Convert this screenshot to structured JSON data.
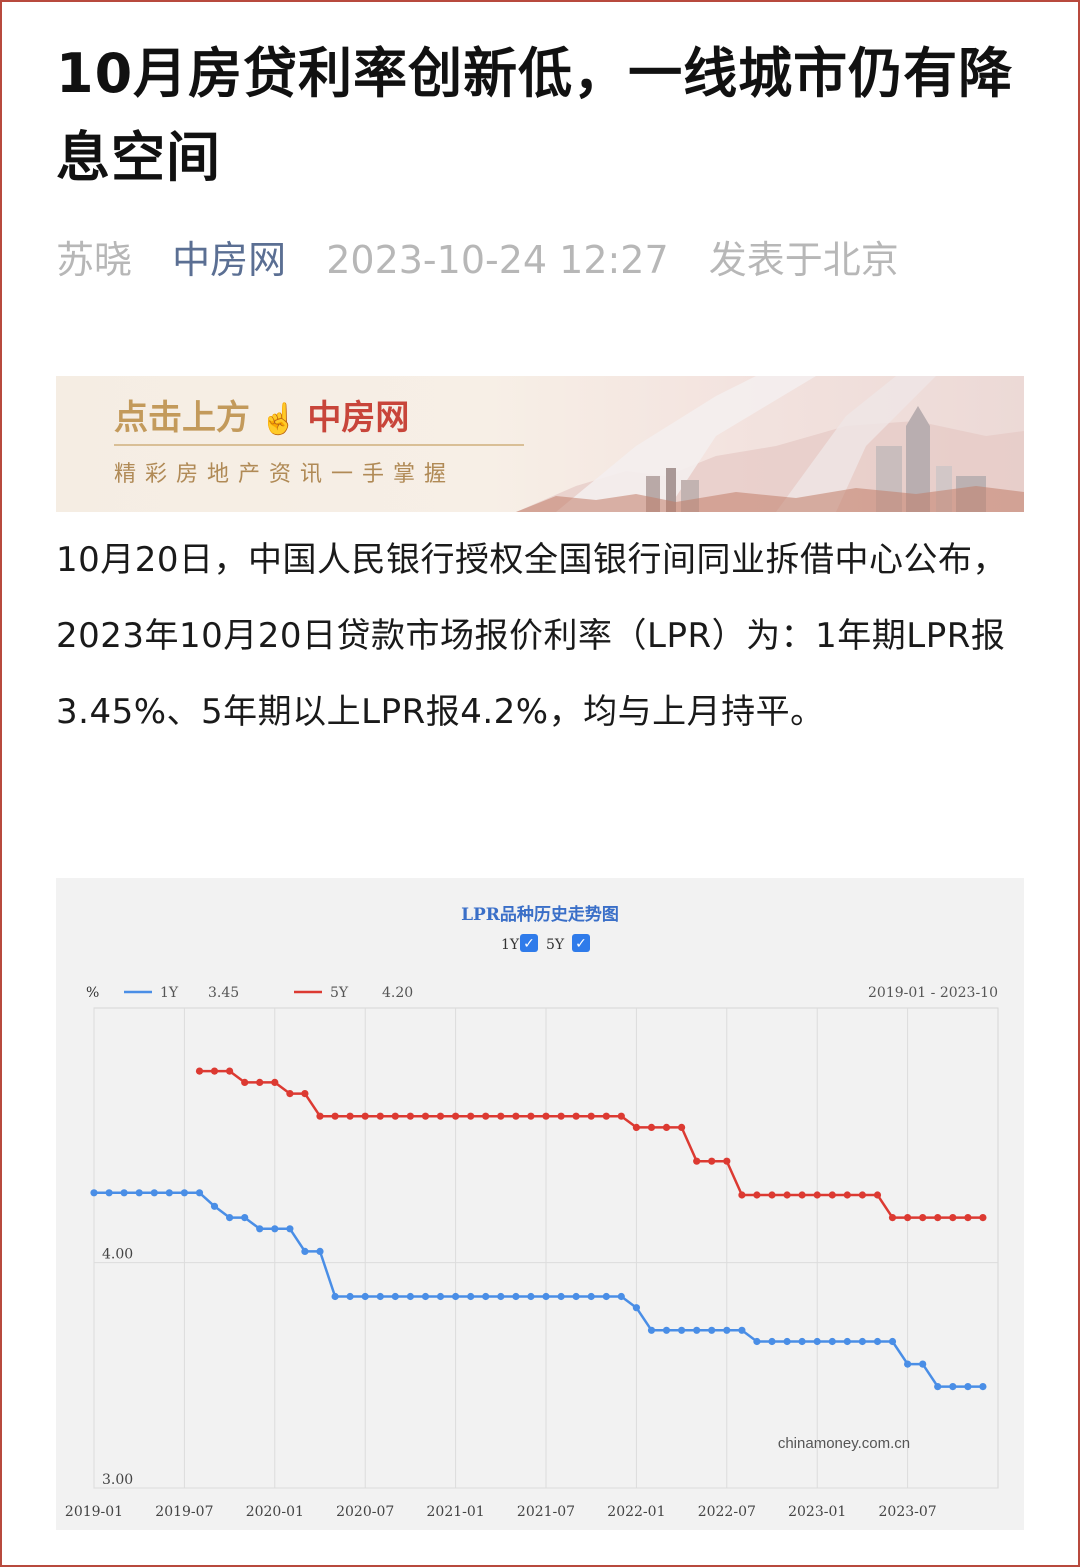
{
  "article": {
    "title": "10月房贷利率创新低，一线城市仍有降息空间",
    "author": "苏晓",
    "source": "中房网",
    "datetime": "2023-10-24 12:27",
    "location": "发表于北京",
    "body": "10月20日，中国人民银行授权全国银行间同业拆借中心公布，2023年10月20日贷款市场报价利率（LPR）为：1年期LPR报3.45%、5年期以上LPR报4.2%，均与上月持平。"
  },
  "banner": {
    "line1_a": "点击上方",
    "hand_icon": "pointing-hand-icon",
    "line1_b": "中房网",
    "line2": "精彩房地产资讯一手掌握"
  },
  "chart_data": {
    "type": "line",
    "title": "LPR品种历史走势图",
    "toggles": [
      {
        "label": "1Y",
        "checked": true
      },
      {
        "label": "5Y",
        "checked": true
      }
    ],
    "unit": "%",
    "legend": [
      {
        "name": "1Y",
        "value": "3.45",
        "color": "#4a8ee6"
      },
      {
        "name": "5Y",
        "value": "4.20",
        "color": "#dc3a32"
      }
    ],
    "range_label": "2019-01 - 2023-10",
    "watermark": "chinamoney.com.cn",
    "y_ticks": [
      "4.00",
      "3.00"
    ],
    "ylim": [
      3.0,
      5.13
    ],
    "x_ticks": [
      "2019-01",
      "2019-07",
      "2020-01",
      "2020-07",
      "2021-01",
      "2021-07",
      "2022-01",
      "2022-07",
      "2023-01",
      "2023-07"
    ],
    "x_start": "2019-01",
    "grid": true,
    "series": [
      {
        "name": "1Y",
        "color": "#4a8ee6",
        "start": "2019-01",
        "values": [
          4.31,
          4.31,
          4.31,
          4.31,
          4.31,
          4.31,
          4.31,
          4.31,
          4.25,
          4.2,
          4.2,
          4.15,
          4.15,
          4.15,
          4.05,
          4.05,
          3.85,
          3.85,
          3.85,
          3.85,
          3.85,
          3.85,
          3.85,
          3.85,
          3.85,
          3.85,
          3.85,
          3.85,
          3.85,
          3.85,
          3.85,
          3.85,
          3.85,
          3.85,
          3.85,
          3.85,
          3.8,
          3.7,
          3.7,
          3.7,
          3.7,
          3.7,
          3.7,
          3.7,
          3.65,
          3.65,
          3.65,
          3.65,
          3.65,
          3.65,
          3.65,
          3.65,
          3.65,
          3.65,
          3.55,
          3.55,
          3.45,
          3.45,
          3.45,
          3.45
        ]
      },
      {
        "name": "5Y",
        "color": "#dc3a32",
        "start": "2019-08",
        "values": [
          4.85,
          4.85,
          4.85,
          4.8,
          4.8,
          4.8,
          4.75,
          4.75,
          4.65,
          4.65,
          4.65,
          4.65,
          4.65,
          4.65,
          4.65,
          4.65,
          4.65,
          4.65,
          4.65,
          4.65,
          4.65,
          4.65,
          4.65,
          4.65,
          4.65,
          4.65,
          4.65,
          4.65,
          4.65,
          4.6,
          4.6,
          4.6,
          4.6,
          4.45,
          4.45,
          4.45,
          4.3,
          4.3,
          4.3,
          4.3,
          4.3,
          4.3,
          4.3,
          4.3,
          4.3,
          4.3,
          4.2,
          4.2,
          4.2,
          4.2,
          4.2,
          4.2,
          4.2
        ]
      }
    ]
  }
}
